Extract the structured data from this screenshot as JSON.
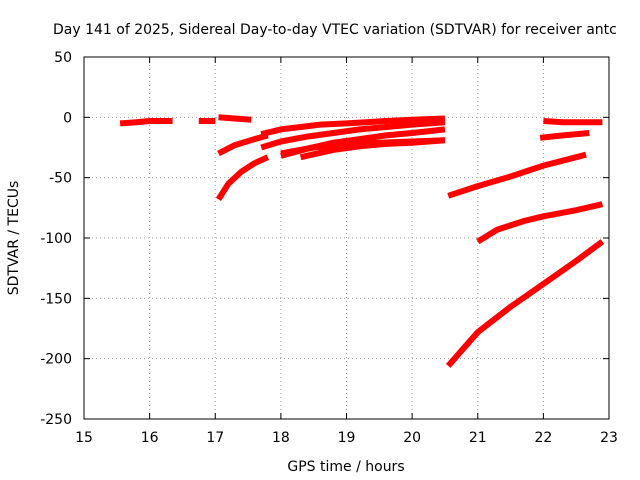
{
  "chart_data": {
    "type": "line",
    "title": "Day 141 of 2025, Sidereal Day-to-day VTEC variation (SDTVAR) for receiver antc",
    "xlabel": "GPS time / hours",
    "ylabel": "SDTVAR / TECUs",
    "xlim": [
      15,
      23
    ],
    "ylim": [
      -250,
      50
    ],
    "xticks": [
      15,
      16,
      17,
      18,
      19,
      20,
      21,
      22,
      23
    ],
    "yticks": [
      50,
      0,
      -50,
      -100,
      -150,
      -200,
      -250
    ],
    "grid": true,
    "series_color": "#ff0000",
    "segments": [
      {
        "x": [
          15.55,
          15.8,
          16.0,
          16.35
        ],
        "y": [
          -5,
          -4,
          -3,
          -3
        ]
      },
      {
        "x": [
          16.75,
          17.0
        ],
        "y": [
          -3,
          -3
        ]
      },
      {
        "x": [
          17.05,
          17.3,
          17.55
        ],
        "y": [
          0,
          -1,
          -2
        ]
      },
      {
        "x": [
          17.05,
          17.3,
          17.6,
          17.8
        ],
        "y": [
          -30,
          -23,
          -18,
          -15
        ]
      },
      {
        "x": [
          17.05,
          17.2,
          17.4,
          17.6,
          17.8
        ],
        "y": [
          -68,
          -55,
          -45,
          -38,
          -33
        ]
      },
      {
        "x": [
          17.7,
          18.0,
          18.3,
          18.6,
          19.0,
          19.3,
          19.6,
          20.0,
          20.5
        ],
        "y": [
          -14,
          -10,
          -8,
          -6,
          -5,
          -4,
          -3,
          -2,
          -1
        ]
      },
      {
        "x": [
          17.7,
          18.0,
          18.4,
          18.8,
          19.2,
          19.6,
          20.0,
          20.5
        ],
        "y": [
          -25,
          -20,
          -16,
          -13,
          -10,
          -8,
          -6,
          -4
        ]
      },
      {
        "x": [
          18.0,
          18.4,
          18.8,
          19.2,
          19.6,
          20.0,
          20.5
        ],
        "y": [
          -32,
          -26,
          -21,
          -18,
          -15,
          -13,
          -10
        ]
      },
      {
        "x": [
          18.3,
          18.8,
          19.2,
          19.6,
          20.0,
          20.5
        ],
        "y": [
          -33,
          -27,
          -24,
          -22,
          -21,
          -19
        ]
      },
      {
        "x": [
          18.0,
          18.5,
          19.0,
          19.5,
          20.0,
          20.5
        ],
        "y": [
          -30,
          -25,
          -22,
          -21,
          -20,
          -19
        ]
      },
      {
        "x": [
          20.55,
          21.0,
          21.5,
          22.0,
          22.5,
          22.65
        ],
        "y": [
          -65,
          -57,
          -49,
          -40,
          -33,
          -31
        ]
      },
      {
        "x": [
          21.0,
          21.3,
          21.7,
          22.0,
          22.5,
          22.9
        ],
        "y": [
          -103,
          -93,
          -86,
          -82,
          -77,
          -72
        ]
      },
      {
        "x": [
          20.55,
          21.0,
          21.5,
          22.0,
          22.5,
          22.9
        ],
        "y": [
          -206,
          -178,
          -157,
          -138,
          -119,
          -103
        ]
      },
      {
        "x": [
          22.0,
          22.3,
          22.6,
          22.9
        ],
        "y": [
          -3,
          -4,
          -4,
          -4
        ]
      },
      {
        "x": [
          21.95,
          22.3,
          22.7
        ],
        "y": [
          -17,
          -15,
          -13
        ]
      }
    ]
  }
}
